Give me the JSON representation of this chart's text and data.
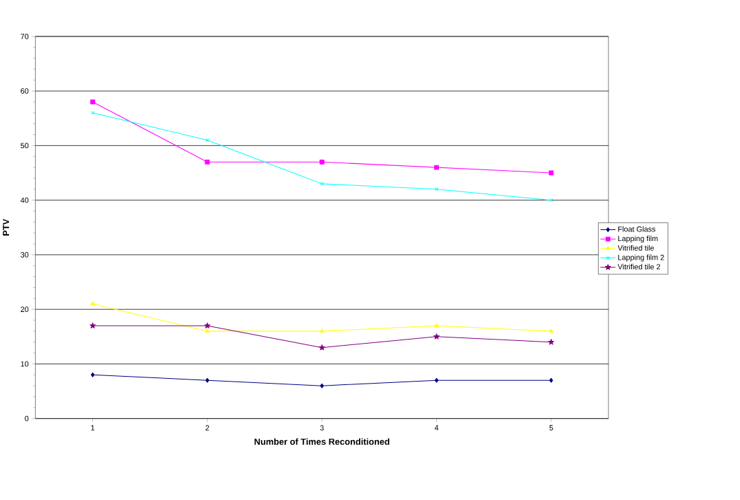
{
  "chart_data": {
    "type": "line",
    "xlabel": "Number of Times Reconditioned",
    "ylabel": "PTV",
    "categories": [
      "1",
      "2",
      "3",
      "4",
      "5"
    ],
    "series": [
      {
        "name": "Float Glass",
        "color": "#000080",
        "marker": "diamond",
        "values": [
          8,
          7,
          6,
          7,
          7
        ]
      },
      {
        "name": "Lapping film",
        "color": "#ff00ff",
        "marker": "square",
        "values": [
          58,
          47,
          47,
          46,
          45
        ]
      },
      {
        "name": "Vitrified tile",
        "color": "#ffff00",
        "marker": "triangle",
        "values": [
          21,
          16,
          16,
          17,
          16
        ]
      },
      {
        "name": "Lapping film 2",
        "color": "#00ffff",
        "marker": "cross",
        "values": [
          56,
          51,
          43,
          42,
          40
        ]
      },
      {
        "name": "Vitrified tile 2",
        "color": "#800080",
        "marker": "star",
        "values": [
          17,
          17,
          13,
          15,
          14
        ]
      }
    ],
    "ylim": [
      0,
      70
    ],
    "yticks": [
      0,
      10,
      20,
      30,
      40,
      50,
      60,
      70
    ],
    "grid": "y",
    "legend": "right",
    "line_style": "solid"
  }
}
